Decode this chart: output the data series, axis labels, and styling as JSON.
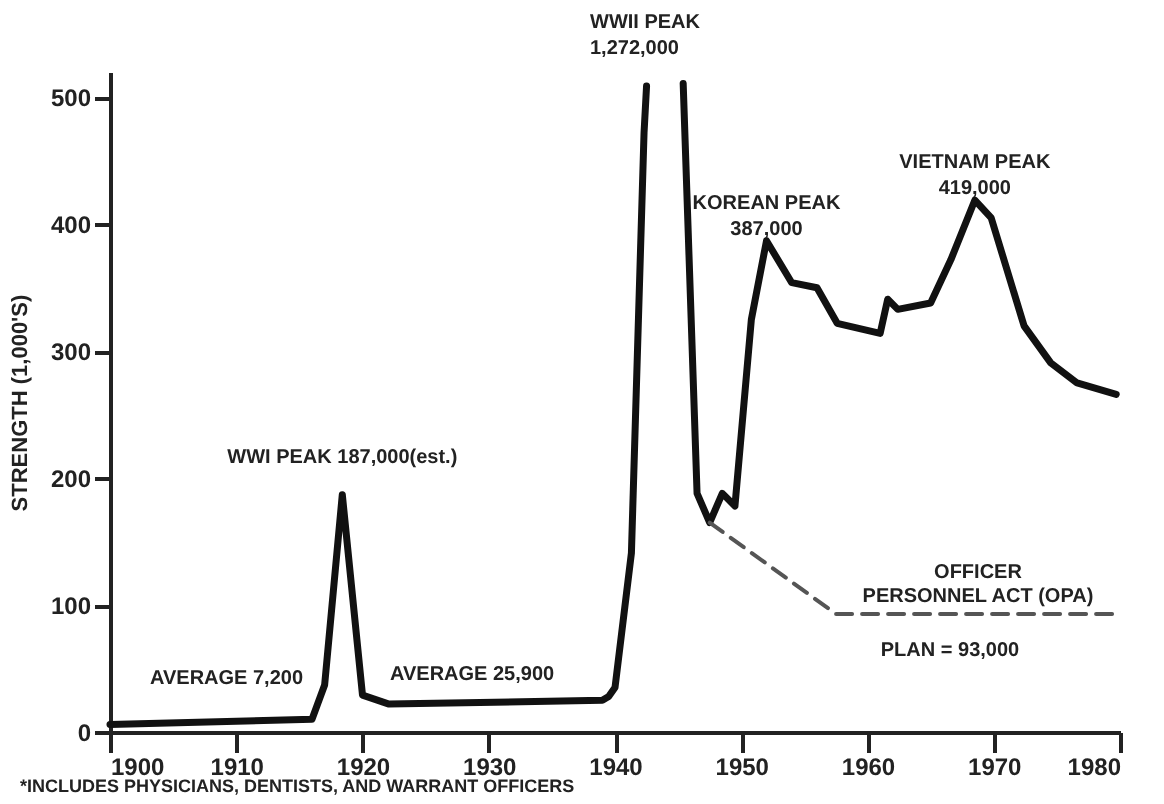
{
  "chart_data": {
    "type": "line",
    "ylabel": "STRENGTH (1,000'S)",
    "xlim": [
      1900,
      1980
    ],
    "xticks": [
      1900,
      1910,
      1920,
      1930,
      1940,
      1950,
      1960,
      1970,
      1980
    ],
    "ylim": [
      0,
      520
    ],
    "yticks": [
      0,
      100,
      200,
      300,
      400,
      500
    ],
    "marker": "none",
    "series": [
      {
        "color": "#111111",
        "line_style": "solid",
        "x": [
          1900,
          1916,
          1917,
          1918.4,
          1920,
          1922.1,
          1939,
          1939.5,
          1940,
          1941.3,
          1942.3,
          1942.5,
          1944,
          1945.4,
          1946.5,
          1947.5,
          1948.5,
          1949.5,
          1950.8,
          1952,
          1954,
          1956,
          1957.6,
          1961,
          1961.6,
          1962.4,
          1965,
          1966.6,
          1968.5,
          1969.8,
          1972.4,
          1974.5,
          1976.6,
          1979.7
        ],
        "values": [
          6,
          10,
          37,
          187,
          29,
          22,
          25,
          28,
          35,
          141,
          472,
          509,
          null,
          511,
          188,
          165,
          188,
          178,
          325,
          387,
          354,
          350,
          322,
          314,
          341,
          333,
          338,
          372,
          419,
          405,
          320,
          291,
          275,
          266
        ]
      },
      {
        "name": "OFFICER PERSONNEL ACT (OPA)",
        "color": "#555555",
        "line_style": "dashed",
        "x": [
          1947.5,
          1957.5,
          1980
        ],
        "values": [
          165,
          93,
          93
        ]
      }
    ],
    "annotations": [
      {
        "text": "WWI PEAK  187,000(est.)",
        "x": 1918.4,
        "y": 187
      },
      "WWII PEAK 1,272,000",
      {
        "text": "KOREAN PEAK 387,000",
        "x": 1952,
        "y": 387
      },
      {
        "text": "VIETNAM PEAK 419,000",
        "x": 1968.5,
        "y": 419
      },
      "AVERAGE  7,200",
      "AVERAGE  25,900",
      "PLAN = 93,000",
      "*INCLUDES PHYSICIANS, DENTISTS, AND WARRANT OFFICERS"
    ]
  }
}
